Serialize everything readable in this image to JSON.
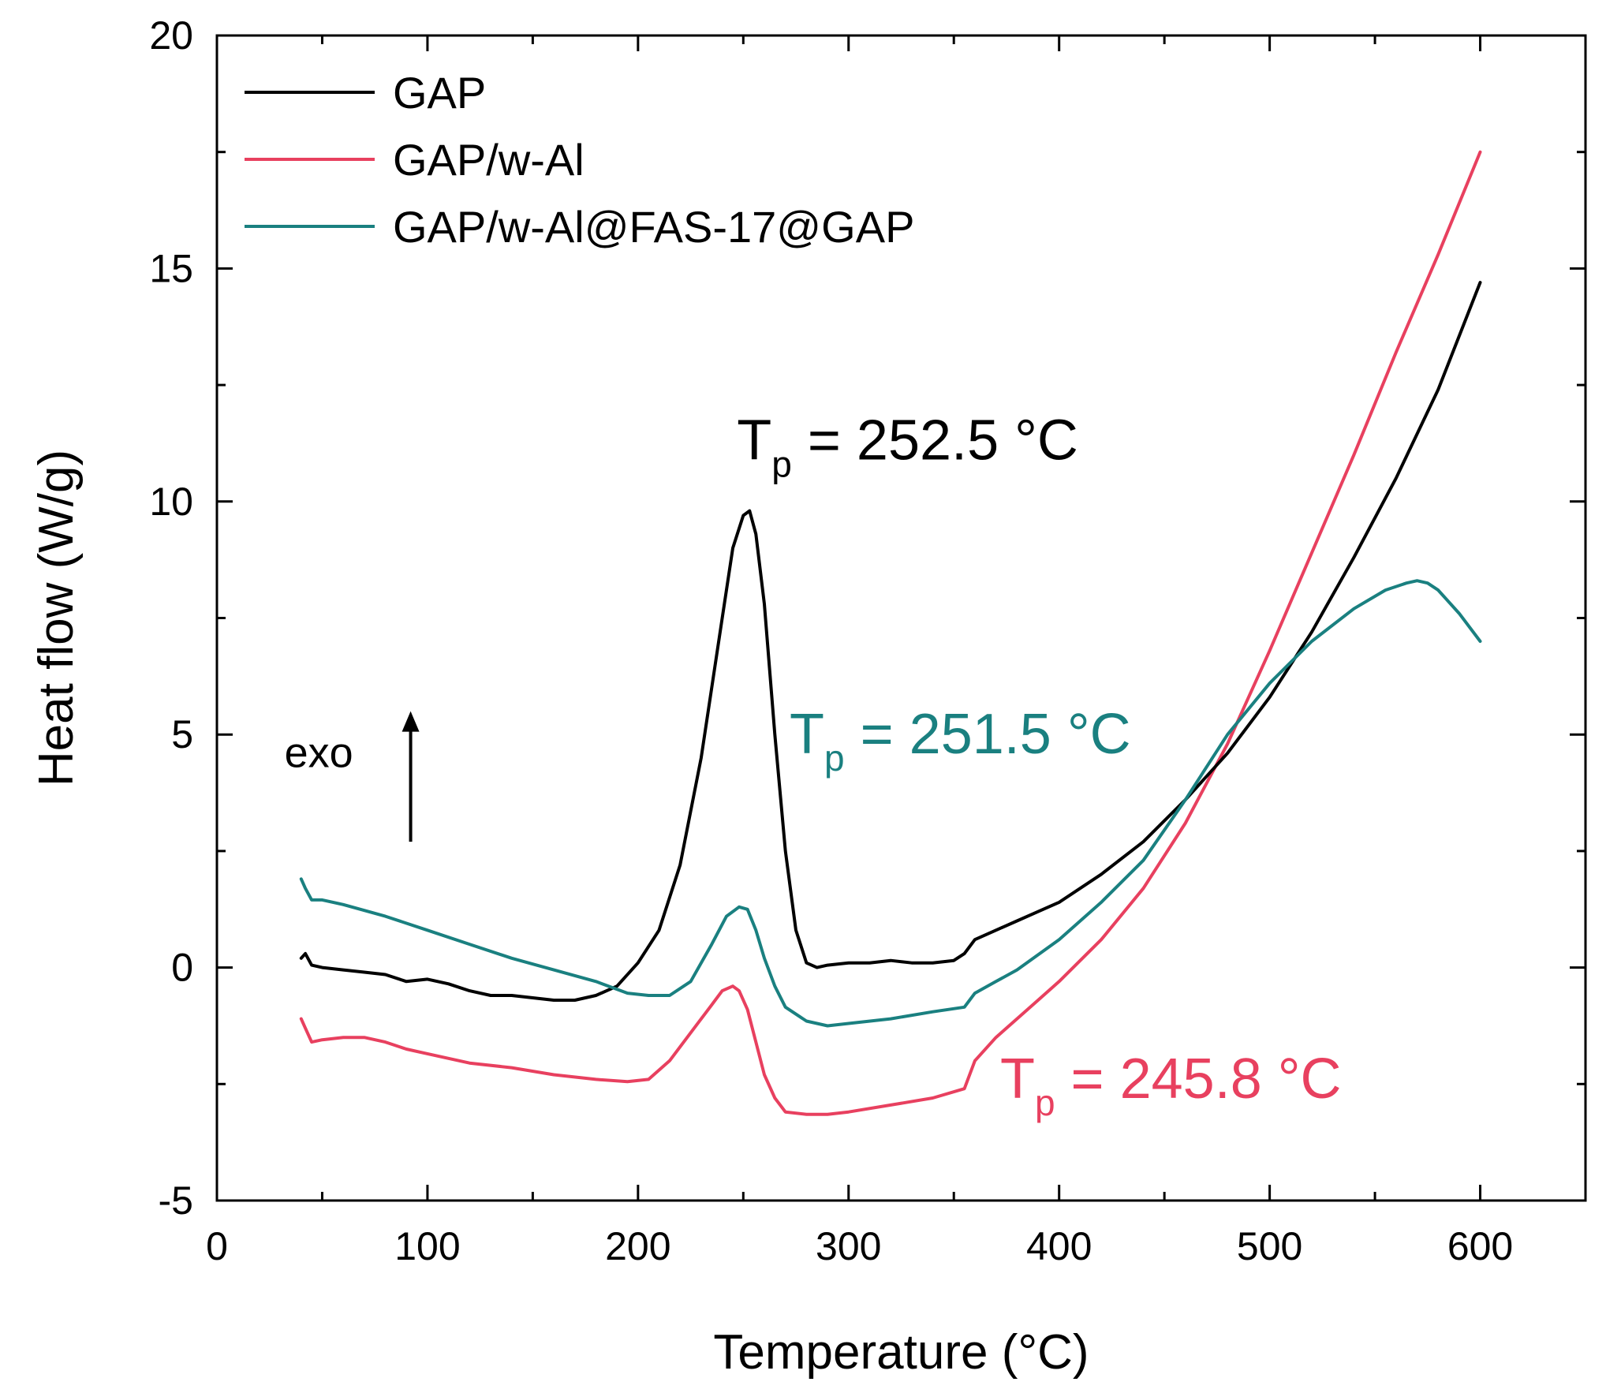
{
  "chart_data": {
    "type": "line",
    "title": "",
    "xlabel": "Temperature (°C)",
    "ylabel": "Heat flow (W/g)",
    "xlim": [
      0,
      650
    ],
    "ylim": [
      -5,
      20
    ],
    "x_ticks": [
      0,
      100,
      200,
      300,
      400,
      500,
      600
    ],
    "y_ticks": [
      -5,
      0,
      5,
      10,
      15,
      20
    ],
    "x_tick_labels": [
      "0",
      "100",
      "200",
      "300",
      "400",
      "500",
      "600"
    ],
    "y_tick_labels": [
      "-5",
      "0",
      "5",
      "10",
      "15",
      "20"
    ],
    "legend_position": "top-left",
    "series": [
      {
        "name": "GAP",
        "color": "#000000",
        "x": [
          40,
          42,
          45,
          50,
          60,
          70,
          80,
          90,
          100,
          110,
          120,
          130,
          140,
          150,
          160,
          170,
          180,
          190,
          200,
          210,
          220,
          230,
          240,
          245,
          250,
          253,
          256,
          260,
          265,
          270,
          275,
          280,
          285,
          290,
          300,
          310,
          320,
          330,
          340,
          350,
          355,
          360,
          370,
          380,
          390,
          400,
          420,
          440,
          460,
          480,
          500,
          520,
          540,
          560,
          580,
          600
        ],
        "y": [
          0.2,
          0.3,
          0.05,
          0.0,
          -0.05,
          -0.1,
          -0.15,
          -0.3,
          -0.25,
          -0.35,
          -0.5,
          -0.6,
          -0.6,
          -0.65,
          -0.7,
          -0.7,
          -0.6,
          -0.4,
          0.1,
          0.8,
          2.2,
          4.5,
          7.5,
          9.0,
          9.7,
          9.8,
          9.3,
          7.8,
          5.0,
          2.5,
          0.8,
          0.1,
          0.0,
          0.05,
          0.1,
          0.1,
          0.15,
          0.1,
          0.1,
          0.15,
          0.3,
          0.6,
          0.8,
          1.0,
          1.2,
          1.4,
          2.0,
          2.7,
          3.6,
          4.6,
          5.8,
          7.2,
          8.8,
          10.5,
          12.4,
          14.7
        ]
      },
      {
        "name": "GAP/w-Al",
        "color": "#e8405f",
        "x": [
          40,
          42,
          45,
          50,
          60,
          70,
          80,
          90,
          100,
          120,
          140,
          160,
          180,
          195,
          205,
          215,
          225,
          235,
          240,
          245,
          248,
          252,
          256,
          260,
          265,
          270,
          280,
          290,
          300,
          320,
          340,
          355,
          360,
          370,
          380,
          390,
          400,
          420,
          440,
          460,
          480,
          500,
          520,
          540,
          560,
          580,
          600
        ],
        "y": [
          -1.1,
          -1.3,
          -1.6,
          -1.55,
          -1.5,
          -1.5,
          -1.6,
          -1.75,
          -1.85,
          -2.05,
          -2.15,
          -2.3,
          -2.4,
          -2.45,
          -2.4,
          -2.0,
          -1.4,
          -0.8,
          -0.5,
          -0.4,
          -0.5,
          -0.9,
          -1.6,
          -2.3,
          -2.8,
          -3.1,
          -3.15,
          -3.15,
          -3.1,
          -2.95,
          -2.8,
          -2.6,
          -2.0,
          -1.5,
          -1.1,
          -0.7,
          -0.3,
          0.6,
          1.7,
          3.1,
          4.8,
          6.8,
          8.9,
          11.0,
          13.2,
          15.3,
          17.5
        ]
      },
      {
        "name": "GAP/w-Al@FAS-17@GAP",
        "color": "#1a8080",
        "x": [
          40,
          42,
          45,
          50,
          60,
          80,
          100,
          120,
          140,
          160,
          180,
          195,
          205,
          215,
          225,
          235,
          242,
          248,
          252,
          256,
          260,
          265,
          270,
          280,
          290,
          300,
          320,
          340,
          355,
          360,
          370,
          380,
          400,
          420,
          440,
          460,
          480,
          500,
          520,
          540,
          555,
          565,
          570,
          575,
          580,
          590,
          600
        ],
        "y": [
          1.9,
          1.7,
          1.45,
          1.45,
          1.35,
          1.1,
          0.8,
          0.5,
          0.2,
          -0.05,
          -0.3,
          -0.55,
          -0.6,
          -0.6,
          -0.3,
          0.5,
          1.1,
          1.3,
          1.25,
          0.8,
          0.2,
          -0.4,
          -0.85,
          -1.15,
          -1.25,
          -1.2,
          -1.1,
          -0.95,
          -0.85,
          -0.55,
          -0.3,
          -0.05,
          0.6,
          1.4,
          2.3,
          3.6,
          5.0,
          6.1,
          7.0,
          7.7,
          8.1,
          8.25,
          8.3,
          8.25,
          8.1,
          7.6,
          7.0
        ]
      }
    ],
    "annotations": [
      {
        "base": "T",
        "sub": "p",
        "rest": " = 252.5 °C",
        "label": "Tp = 252.5 °C",
        "series": "GAP",
        "x": 247,
        "y": 10.9,
        "color": "#000000"
      },
      {
        "base": "T",
        "sub": "p",
        "rest": " = 251.5 °C",
        "label": "Tp = 251.5 °C",
        "series": "GAP/w-Al@FAS-17@GAP",
        "x": 272,
        "y": 4.6,
        "color": "#1a8080"
      },
      {
        "base": "T",
        "sub": "p",
        "rest": " = 245.8 °C",
        "label": "Tp = 245.8 °C",
        "series": "GAP/w-Al",
        "x": 372,
        "y": -2.8,
        "color": "#e8405f"
      }
    ],
    "exo_label": "exo",
    "exo_arrow": {
      "x": 92,
      "y_from": 2.7,
      "y_to": 5.5
    }
  }
}
